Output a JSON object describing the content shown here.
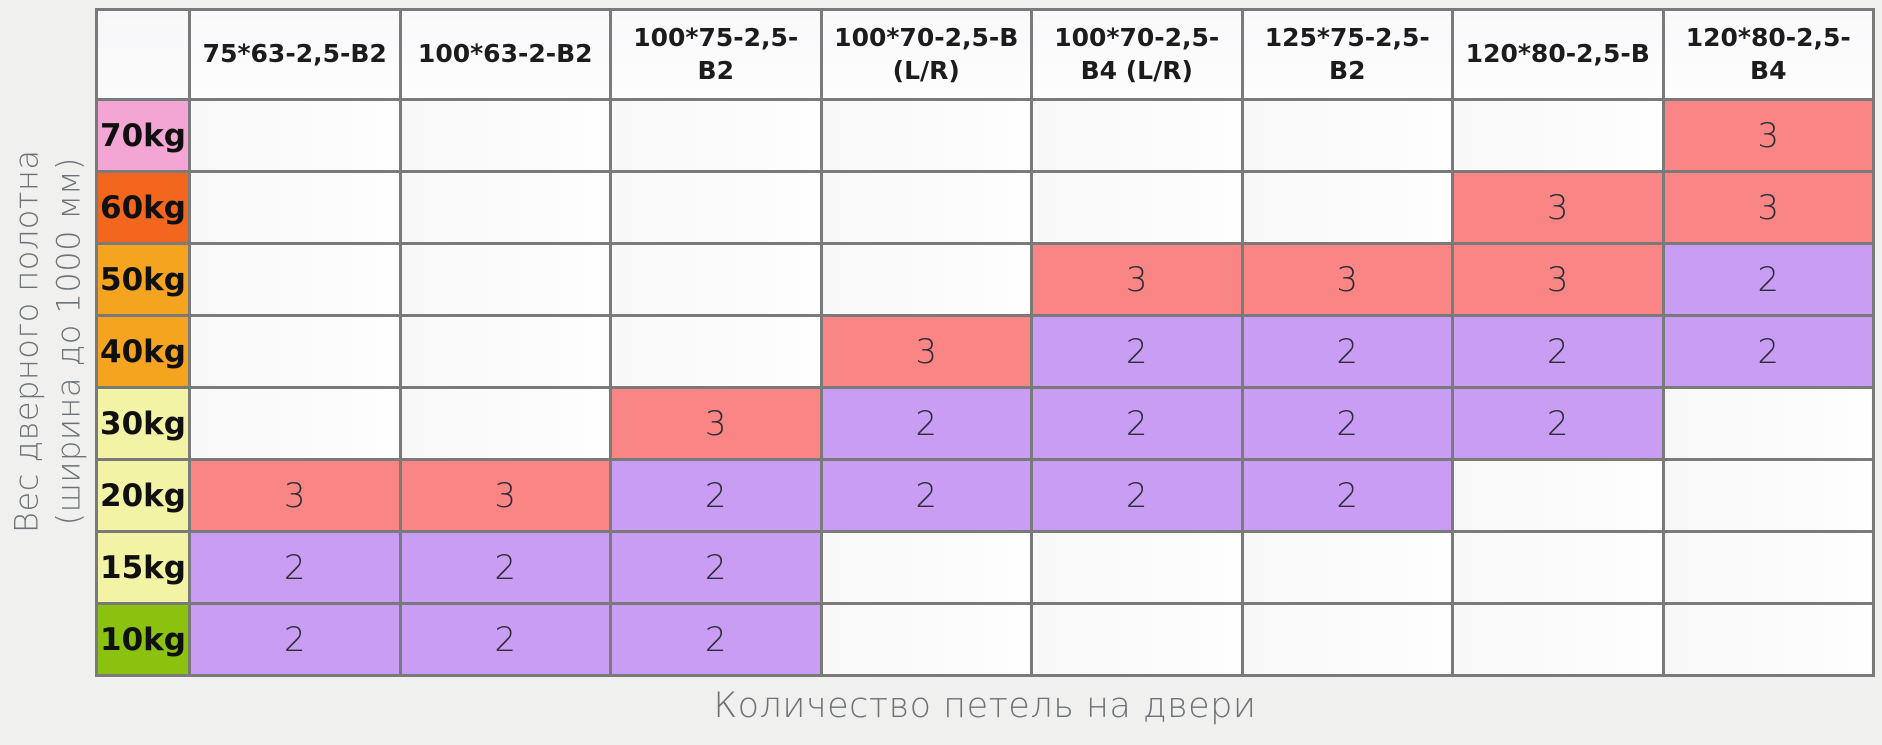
{
  "chart_data": {
    "type": "heatmap",
    "title": "",
    "xlabel": "Количество петель на двери",
    "ylabel": "Вес дверного полотна (ширина до 1000 мм)",
    "ylabel_lines": [
      "Вес дверного полотна",
      "(ширина до 1000 мм)"
    ],
    "columns": [
      "75*63-2,5-B2",
      "100*63-2-B2",
      "100*75-2,5-B2",
      "100*70-2,5-B (L/R)",
      "100*70-2,5-B4 (L/R)",
      "125*75-2,5-B2",
      "120*80-2,5-B",
      "120*80-2,5-B4"
    ],
    "rows": [
      {
        "label": "70kg",
        "label_color": "#f3a6d3",
        "cells": [
          null,
          null,
          null,
          null,
          null,
          null,
          null,
          3
        ]
      },
      {
        "label": "60kg",
        "label_color": "#f2661d",
        "cells": [
          null,
          null,
          null,
          null,
          null,
          null,
          3,
          3
        ]
      },
      {
        "label": "50kg",
        "label_color": "#f5a41f",
        "cells": [
          null,
          null,
          null,
          null,
          3,
          3,
          3,
          2
        ]
      },
      {
        "label": "40kg",
        "label_color": "#f5a41f",
        "cells": [
          null,
          null,
          null,
          3,
          2,
          2,
          2,
          2
        ]
      },
      {
        "label": "30kg",
        "label_color": "#f3f3a5",
        "cells": [
          null,
          null,
          3,
          2,
          2,
          2,
          2,
          null
        ]
      },
      {
        "label": "20kg",
        "label_color": "#f3f3a5",
        "cells": [
          3,
          3,
          2,
          2,
          2,
          2,
          null,
          null
        ]
      },
      {
        "label": "15kg",
        "label_color": "#f3f3a5",
        "cells": [
          2,
          2,
          2,
          null,
          null,
          null,
          null,
          null
        ]
      },
      {
        "label": "10kg",
        "label_color": "#8bc10f",
        "cells": [
          2,
          2,
          2,
          null,
          null,
          null,
          null,
          null
        ]
      }
    ],
    "cell_value_colors": {
      "3": "#f98585",
      "2": "#c89df3"
    },
    "grid_color": "#7a7a7a",
    "axis_label_color": "#6d7277"
  }
}
